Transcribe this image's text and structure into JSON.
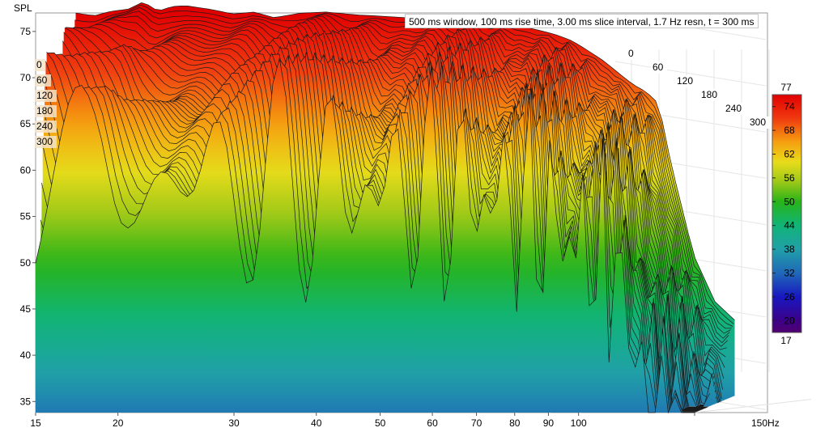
{
  "info_text": "500 ms window, 100 ms rise time, 3.00 ms slice interval, 1.7 Hz resn, t = 300 ms",
  "colorscale": {
    "max_label": "77",
    "min_label": "17",
    "ticks": [
      "74",
      "68",
      "62",
      "56",
      "50",
      "44",
      "38",
      "32",
      "26",
      "20"
    ],
    "stops": [
      {
        "value": 77,
        "color": "#e00000"
      },
      {
        "value": 71,
        "color": "#f03a10"
      },
      {
        "value": 65,
        "color": "#f5a010"
      },
      {
        "value": 60,
        "color": "#e8dc1a"
      },
      {
        "value": 55,
        "color": "#9cc818"
      },
      {
        "value": 50,
        "color": "#28b418"
      },
      {
        "value": 44,
        "color": "#10b478"
      },
      {
        "value": 38,
        "color": "#20a0a8"
      },
      {
        "value": 32,
        "color": "#2068b8"
      },
      {
        "value": 26,
        "color": "#1818c0"
      },
      {
        "value": 20,
        "color": "#3c0088"
      },
      {
        "value": 17,
        "color": "#500070"
      }
    ]
  },
  "chart_data": {
    "type": "waterfall",
    "title": "",
    "ylabel": "SPL",
    "xlabel": "",
    "x_unit": "Hz",
    "x_scale": "log",
    "xlim": [
      15,
      150
    ],
    "ylim": [
      33.8,
      77
    ],
    "x_ticks": [
      "15",
      "20",
      "30",
      "40",
      "50",
      "60",
      "70",
      "80",
      "90",
      "100",
      "150Hz"
    ],
    "y_ticks": [
      "35",
      "40",
      "45",
      "50",
      "55",
      "60",
      "65",
      "70",
      "75"
    ],
    "time_axis_unit": "ms",
    "time_ticks": [
      "0",
      "60",
      "120",
      "180",
      "240",
      "300"
    ],
    "left_time_labels": [
      "0",
      "60",
      "120",
      "180",
      "240",
      "300"
    ],
    "front_slice_t_ms": 300,
    "back_slice_t_ms": 0,
    "back_slice_spl": {
      "x": [
        15,
        16,
        17,
        18,
        19,
        20,
        21,
        22,
        24,
        26,
        28,
        30,
        33,
        36,
        40,
        45,
        50,
        55,
        60,
        65,
        70,
        75,
        80,
        85,
        90,
        95,
        100,
        105,
        110,
        115,
        120,
        130,
        140,
        150
      ],
      "y": [
        75.2,
        74.9,
        75.4,
        75.6,
        76.4,
        75.4,
        75.9,
        76.0,
        75.6,
        75.1,
        75.3,
        74.7,
        75.2,
        75.3,
        75.0,
        74.8,
        74.6,
        74.5,
        74.3,
        74.2,
        73.9,
        73.4,
        72.9,
        72.2,
        71.1,
        70.0,
        68.7,
        67.5,
        66.7,
        65.4,
        59.0,
        49.0,
        44.0,
        42.0
      ]
    },
    "front_slice_spl": {
      "x": [
        15,
        16,
        17,
        18,
        19,
        20,
        22,
        24,
        26,
        28,
        30
      ],
      "y": [
        45.0,
        51.0,
        54.5,
        50.0,
        39.0,
        47.0,
        40.5,
        54.0,
        44.0,
        36.5,
        40.0
      ]
    }
  }
}
